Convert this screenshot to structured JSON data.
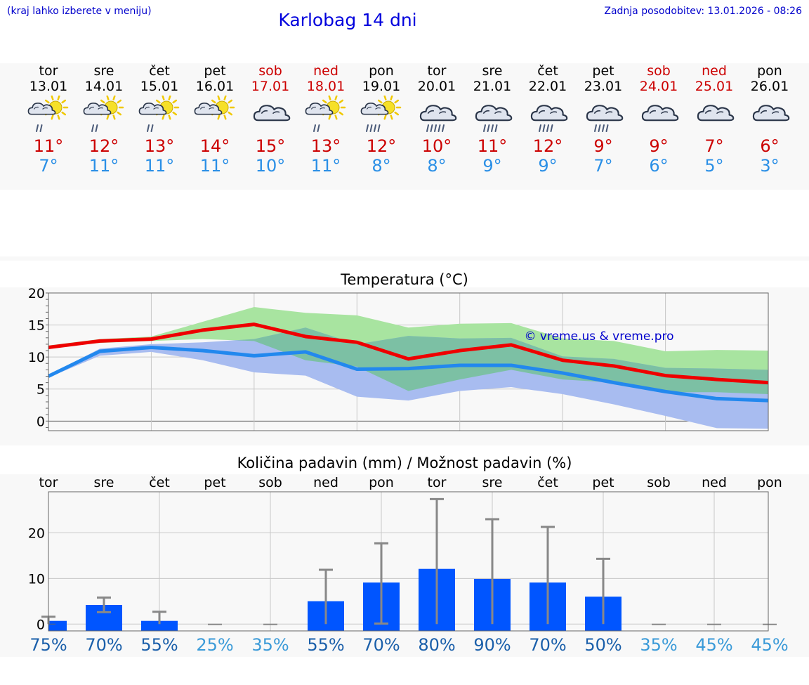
{
  "header": {
    "hint": "(kraj lahko izberete v meniju)",
    "title": "Karlobag 14 dni",
    "updated": "Zadnja posodobitev: 13.01.2026 - 08:26"
  },
  "days": [
    {
      "name": "tor",
      "date": "13.01",
      "icon": "sun-cloud-rain-icon",
      "max": "11°",
      "min": "7°",
      "weekend": false
    },
    {
      "name": "sre",
      "date": "14.01",
      "icon": "sun-cloud-rain-icon",
      "max": "12°",
      "min": "11°",
      "weekend": false
    },
    {
      "name": "čet",
      "date": "15.01",
      "icon": "sun-cloud-rain-icon",
      "max": "13°",
      "min": "11°",
      "weekend": false
    },
    {
      "name": "pet",
      "date": "16.01",
      "icon": "sun-cloud-icon",
      "max": "14°",
      "min": "11°",
      "weekend": false
    },
    {
      "name": "sob",
      "date": "17.01",
      "icon": "cloud-icon",
      "max": "15°",
      "min": "10°",
      "weekend": true
    },
    {
      "name": "ned",
      "date": "18.01",
      "icon": "sun-cloud-rain-icon",
      "max": "13°",
      "min": "11°",
      "weekend": true
    },
    {
      "name": "pon",
      "date": "19.01",
      "icon": "sun-cloud-heavy-rain-icon",
      "max": "12°",
      "min": "8°",
      "weekend": false
    },
    {
      "name": "tor",
      "date": "20.01",
      "icon": "cloud-heavy-rain-icon",
      "max": "10°",
      "min": "8°",
      "weekend": false
    },
    {
      "name": "sre",
      "date": "21.01",
      "icon": "cloud-rain-icon",
      "max": "11°",
      "min": "9°",
      "weekend": false
    },
    {
      "name": "čet",
      "date": "22.01",
      "icon": "cloud-rain-icon",
      "max": "12°",
      "min": "9°",
      "weekend": false
    },
    {
      "name": "pet",
      "date": "23.01",
      "icon": "cloud-rain-icon",
      "max": "9°",
      "min": "7°",
      "weekend": false
    },
    {
      "name": "sob",
      "date": "24.01",
      "icon": "cloud-icon",
      "max": "9°",
      "min": "6°",
      "weekend": true
    },
    {
      "name": "ned",
      "date": "25.01",
      "icon": "cloud-icon",
      "max": "7°",
      "min": "5°",
      "weekend": true
    },
    {
      "name": "pon",
      "date": "26.01",
      "icon": "cloud-icon",
      "max": "6°",
      "min": "3°",
      "weekend": false
    }
  ],
  "colors": {
    "max_line": "#ee0000",
    "min_line": "#2288ee",
    "max_band": "#a8e4a0",
    "min_band": "#a8bcf0",
    "overlap_band": "#7cc0a4",
    "bar": "#0055ff",
    "errorbar": "#888888",
    "prob_high": "#1a5faa",
    "prob_low": "#3a9ad8",
    "weekend": "#cc0000",
    "copyright": "#0000cc"
  },
  "chart_data": [
    {
      "type": "line",
      "title": "Temperatura (°C)",
      "categories": [
        "13.01",
        "14.01",
        "15.01",
        "16.01",
        "17.01",
        "18.01",
        "19.01",
        "20.01",
        "21.01",
        "22.01",
        "23.01",
        "24.01",
        "25.01",
        "26.01"
      ],
      "x": [
        0,
        1,
        2,
        3,
        4,
        5,
        6,
        7,
        8,
        9,
        10,
        11,
        12,
        13,
        14
      ],
      "ylim": [
        -1.5,
        20
      ],
      "yticks": [
        0,
        5,
        10,
        15,
        20
      ],
      "annotation": "© vreme.us & vreme.pro",
      "series": [
        {
          "name": "max",
          "values": [
            11.5,
            12.5,
            12.8,
            14.2,
            15.1,
            13.2,
            12.3,
            9.7,
            11.0,
            11.9,
            9.5,
            8.6,
            7.1,
            6.5,
            6.0
          ]
        },
        {
          "name": "max_low",
          "values": [
            11.5,
            12.2,
            12.5,
            12.8,
            12.5,
            9.5,
            8.5,
            4.7,
            6.5,
            8.0,
            6.5,
            6.0,
            4.5,
            4.5,
            4.2
          ]
        },
        {
          "name": "max_high",
          "values": [
            11.8,
            12.8,
            13.2,
            15.5,
            17.8,
            16.9,
            16.5,
            14.6,
            15.2,
            15.3,
            12.9,
            12.5,
            10.9,
            11.1,
            11.0
          ]
        },
        {
          "name": "min",
          "values": [
            7.0,
            10.9,
            11.5,
            11.0,
            10.2,
            10.8,
            8.1,
            8.2,
            8.7,
            8.7,
            7.5,
            6.0,
            4.6,
            3.5,
            3.2
          ]
        },
        {
          "name": "min_low",
          "values": [
            6.8,
            10.2,
            10.8,
            9.5,
            7.6,
            7.1,
            3.8,
            3.2,
            4.7,
            5.3,
            4.2,
            2.6,
            0.8,
            -1.1,
            -1.2
          ]
        },
        {
          "name": "min_high",
          "values": [
            7.2,
            11.3,
            12.0,
            12.3,
            12.8,
            14.6,
            12.0,
            13.3,
            12.9,
            13.0,
            10.1,
            9.7,
            8.3,
            8.2,
            8.0
          ]
        }
      ]
    },
    {
      "type": "bar",
      "title": "Količina padavin (mm) / Možnost padavin (%)",
      "categories": [
        "tor",
        "sre",
        "čet",
        "pet",
        "sob",
        "ned",
        "pon",
        "tor",
        "sre",
        "čet",
        "pet",
        "sob",
        "ned",
        "pon"
      ],
      "ylim": [
        -1.5,
        29
      ],
      "yticks": [
        0,
        10,
        20
      ],
      "values": [
        0.7,
        4.2,
        0.7,
        0,
        0,
        5.0,
        9.1,
        12.1,
        9.9,
        9.1,
        6.0,
        0,
        0,
        0
      ],
      "err_low": [
        0.0,
        2.6,
        0.0,
        0,
        0,
        0.0,
        0.1,
        0.0,
        0.0,
        0.0,
        0.0,
        0,
        0,
        0
      ],
      "err_high": [
        1.6,
        5.8,
        2.7,
        0.05,
        0.05,
        11.9,
        17.7,
        27.4,
        23.0,
        21.3,
        14.3,
        0.05,
        0.05,
        0.05
      ],
      "probability": [
        "75%",
        "70%",
        "55%",
        "25%",
        "35%",
        "55%",
        "70%",
        "80%",
        "90%",
        "70%",
        "50%",
        "35%",
        "45%",
        "45%"
      ]
    }
  ]
}
